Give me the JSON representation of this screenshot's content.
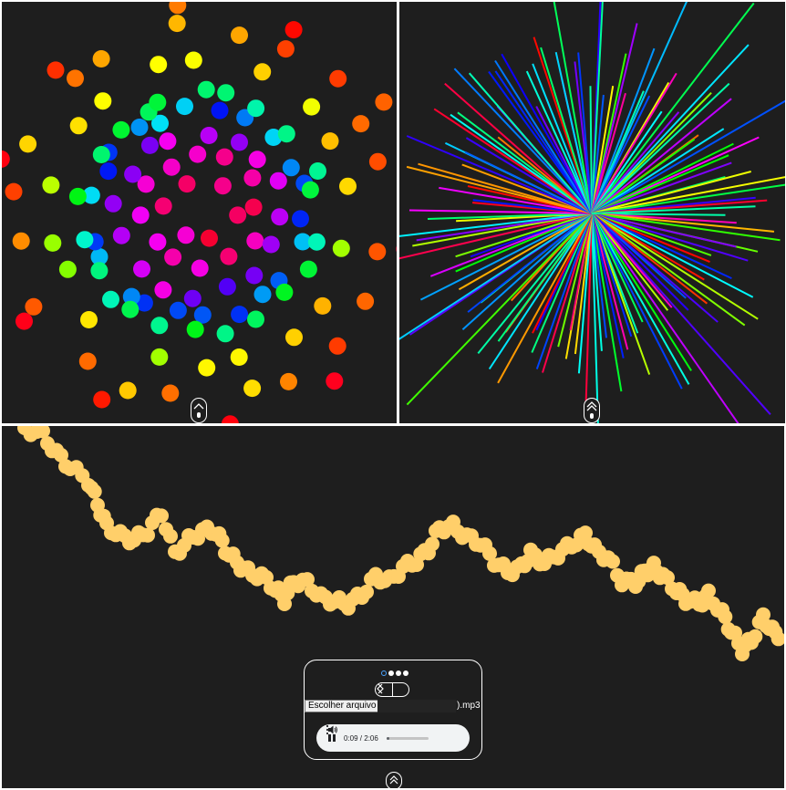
{
  "file_input": {
    "button_label": "Escolher arquivo",
    "extension": ").mp3"
  },
  "audio_player": {
    "time_display": "0:09 / 2:06",
    "progress": 0.07,
    "state": "playing"
  },
  "carousel": {
    "dot_count": 4,
    "active_index": 0,
    "accent_color": "#4aa3ff"
  },
  "colors": {
    "panel_bg": "#1e1e1e",
    "border": "#ffffff",
    "dot_trail": "#ffcf6a"
  },
  "icons": [
    "chevron-up-icon",
    "double-chevron-up-icon",
    "chevron-left-icon",
    "chevron-right-icon",
    "pause-icon",
    "volume-icon",
    "more-vert-icon"
  ]
}
